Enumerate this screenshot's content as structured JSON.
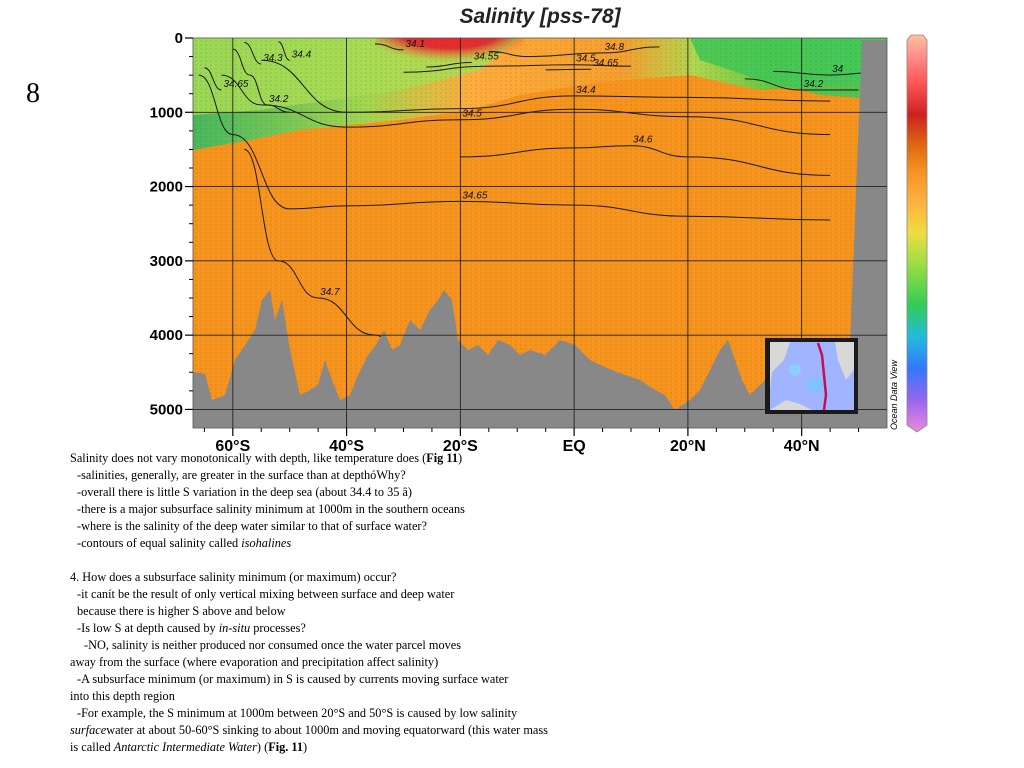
{
  "slide_number": "8",
  "chart_data": {
    "type": "heatmap",
    "title": "Salinity [pss-78]",
    "xlabel": "",
    "ylabel": "",
    "x_tick_labels": [
      "60°S",
      "40°S",
      "20°S",
      "EQ",
      "20°N",
      "40°N"
    ],
    "x_ticks_lat": [
      -60,
      -40,
      -20,
      0,
      20,
      40
    ],
    "xlim": [
      -67,
      55
    ],
    "y_tick_labels": [
      "0",
      "1000",
      "2000",
      "3000",
      "4000",
      "5000"
    ],
    "y_ticks": [
      0,
      1000,
      2000,
      3000,
      4000,
      5000
    ],
    "ylim": [
      0,
      5250
    ],
    "y_reversed": true,
    "colorbar_label": "Ocean Data View",
    "contours": [
      {
        "label": "34.2",
        "lat": [
          -60,
          -57,
          -54,
          -50
        ],
        "depth": [
          150,
          500,
          900,
          1000
        ]
      },
      {
        "label": "34.4",
        "lat": [
          -55,
          -40,
          -20,
          0,
          20,
          45
        ],
        "depth": [
          300,
          1000,
          950,
          780,
          800,
          850
        ]
      },
      {
        "label": "34.5",
        "lat": [
          -62,
          -55,
          -40,
          -20,
          0,
          20,
          45
        ],
        "depth": [
          500,
          900,
          1200,
          1100,
          960,
          1060,
          1300
        ]
      },
      {
        "label": "34.6",
        "lat": [
          -20,
          0,
          10,
          20,
          45
        ],
        "depth": [
          1600,
          1480,
          1450,
          1600,
          1850
        ]
      },
      {
        "label": "34.65",
        "lat": [
          -66,
          -60,
          -50,
          -40,
          -20,
          0,
          20,
          45
        ],
        "depth": [
          500,
          1300,
          2300,
          2260,
          2200,
          2250,
          2400,
          2450
        ]
      },
      {
        "label": "34.7",
        "lat": [
          -58,
          -52,
          -45,
          -35,
          -30
        ],
        "depth": [
          1500,
          3000,
          3500,
          4000,
          4300
        ]
      },
      {
        "label": "34.2",
        "lat": [
          30,
          40,
          50
        ],
        "depth": [
          550,
          700,
          700
        ]
      },
      {
        "label": "34",
        "lat": [
          35,
          45,
          55
        ],
        "depth": [
          450,
          500,
          450
        ]
      },
      {
        "label": "34.5",
        "lat": [
          -30,
          -15,
          0,
          10
        ],
        "depth": [
          460,
          380,
          360,
          380
        ]
      },
      {
        "label": "34.55",
        "lat": [
          -26,
          -18
        ],
        "depth": [
          390,
          330
        ]
      },
      {
        "label": "34.65",
        "lat": [
          -5,
          3
        ],
        "depth": [
          430,
          420
        ]
      },
      {
        "label": "34.8",
        "lat": [
          -15,
          -8,
          5,
          15
        ],
        "depth": [
          180,
          250,
          200,
          120
        ]
      },
      {
        "label": "34.1",
        "lat": [
          -35,
          -30
        ],
        "depth": [
          80,
          160
        ]
      },
      {
        "label": "34.4",
        "lat": [
          -52,
          -50
        ],
        "depth": [
          50,
          300
        ]
      },
      {
        "label": "34.3",
        "lat": [
          -58,
          -55
        ],
        "depth": [
          60,
          350
        ]
      },
      {
        "label": "34.65",
        "lat": [
          -65,
          -62
        ],
        "depth": [
          400,
          700
        ]
      }
    ],
    "colormap": [
      "#ee88dd",
      "#9966ee",
      "#3377ff",
      "#22bbdd",
      "#33cc55",
      "#99dd44",
      "#eedd44",
      "#ffb040",
      "#f59020",
      "#e06a10",
      "#cc2222",
      "#ff5555",
      "#ff8888",
      "#ffc0a0"
    ],
    "colors": {
      "deep_orange": "#f6941e",
      "bathymetry_gray": "#888888",
      "surface_green": "#55c84a",
      "surface_red": "#e01010"
    }
  },
  "notes": {
    "lines": [
      {
        "text": "Salinity does not vary monotonically with depth, like temperature does (",
        "bold_tail": "Fig 11",
        "tail": ")"
      },
      {
        "text": "  -salinities, generally, are greater in the surface than at depthóWhy?"
      },
      {
        "text": "  -overall there is little S variation in the deep sea (about 34.4 to 35 â)"
      },
      {
        "text": "  -there is a major subsurface salinity minimum at 1000m in the southern oceans"
      },
      {
        "text": "  -where is the salinity of the deep water similar to that of surface water?"
      },
      {
        "text": "  -contours of equal salinity called ",
        "italic_tail": "isohalines"
      },
      {
        "text": ""
      },
      {
        "text": "4. How does a subsurface salinity minimum (or maximum) occur?"
      },
      {
        "text": "  -it canít be the result of only vertical mixing between surface and deep water"
      },
      {
        "text": "  because there is higher S above and below"
      },
      {
        "text": "  -Is low S at depth caused by ",
        "italic_tail": "in-situ",
        "tail": " processes?"
      },
      {
        "text": "    -NO, salinity is neither produced nor consumed once the water parcel moves"
      },
      {
        "text": "away from the surface (where evaporation and precipitation affect salinity)"
      },
      {
        "text": "  -A subsurface minimum (or maximum) in S is caused by currents moving surface water"
      },
      {
        "text": "into this depth region"
      },
      {
        "text": "  -For example, the S minimum at 1000m between 20°S and 50°S is caused by low salinity"
      },
      {
        "italic_head": "surface",
        "text": " water at about 50-60°S sinking to about 1000m and moving equatorward (this water mass"
      },
      {
        "text": "is called ",
        "italic_tail": "Antarctic Intermediate Water",
        "tail": ") (",
        "bold_tail2": "Fig. 11",
        "tail2": ")"
      }
    ]
  }
}
